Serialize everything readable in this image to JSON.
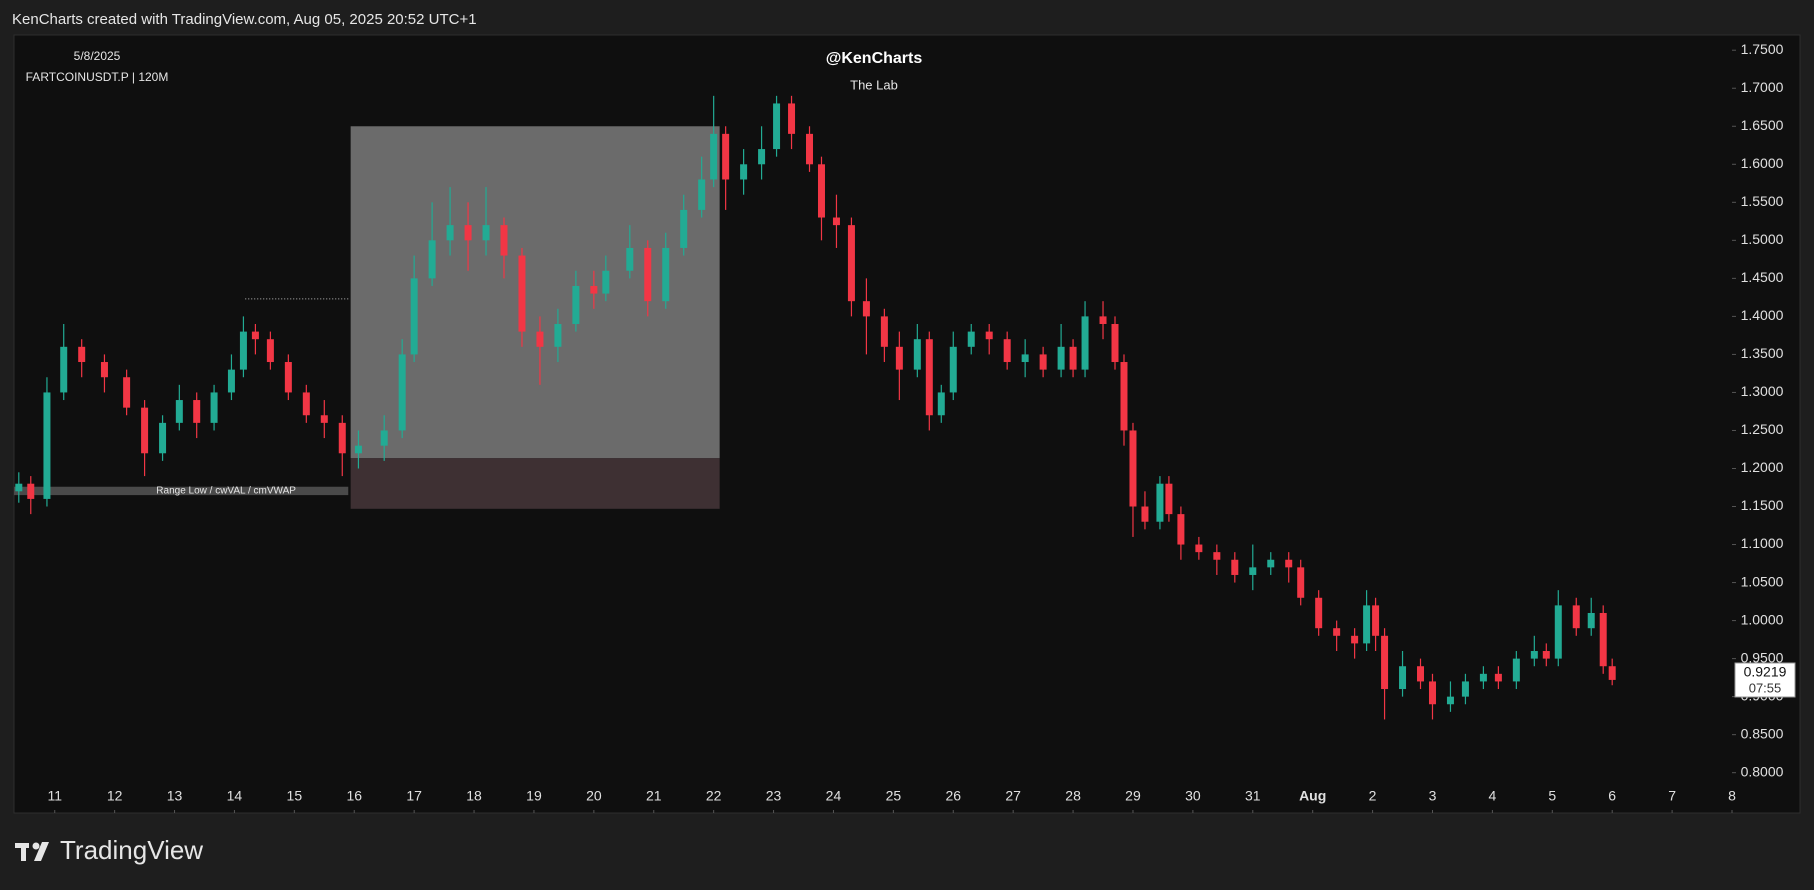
{
  "chart_data": {
    "type": "candlestick",
    "header": "KenCharts created with TradingView.com, Aug 05, 2025 20:52 UTC+1",
    "footer_logo": "TradingView",
    "symbol_date": "5/8/2025",
    "symbol": "FARTCOINUSDT.P | 120M",
    "watermark_title": "@KenCharts",
    "watermark_subtitle": "The Lab",
    "up_color": "#22ab94",
    "down_color": "#f23645",
    "x": [
      10.4,
      10.6,
      10.87,
      11.15,
      11.45,
      11.83,
      12.2,
      12.5,
      12.8,
      13.08,
      13.37,
      13.66,
      13.95,
      14.15,
      14.35,
      14.6,
      14.9,
      15.2,
      15.5,
      15.8,
      16.07,
      16.5,
      16.8,
      17.0,
      17.3,
      17.6,
      17.9,
      18.2,
      18.5,
      18.8,
      19.1,
      19.4,
      19.7,
      20.0,
      20.2,
      20.6,
      20.9,
      21.2,
      21.5,
      21.8,
      22.0,
      22.2,
      22.5,
      22.8,
      23.05,
      23.3,
      23.6,
      23.8,
      24.05,
      24.3,
      24.55,
      24.85,
      25.1,
      25.4,
      25.6,
      25.8,
      26.0,
      26.3,
      26.6,
      26.9,
      27.2,
      27.5,
      27.8,
      28.0,
      28.2,
      28.5,
      28.7,
      28.85,
      29.0,
      29.2,
      29.45,
      29.6,
      29.8,
      30.1,
      30.4,
      30.7,
      31.0,
      31.3,
      31.6,
      31.8,
      32.1,
      32.4,
      32.7,
      32.9,
      33.05,
      33.2,
      33.5,
      33.8,
      34.0,
      34.3,
      34.55,
      34.85,
      35.1,
      35.4,
      35.7,
      35.9,
      36.1,
      36.4,
      36.65,
      36.85,
      37.0
    ],
    "open": [
      1.17,
      1.18,
      1.16,
      1.3,
      1.36,
      1.34,
      1.32,
      1.28,
      1.22,
      1.26,
      1.29,
      1.26,
      1.3,
      1.33,
      1.38,
      1.37,
      1.34,
      1.3,
      1.27,
      1.26,
      1.22,
      1.23,
      1.25,
      1.35,
      1.45,
      1.5,
      1.52,
      1.5,
      1.52,
      1.48,
      1.38,
      1.36,
      1.39,
      1.44,
      1.43,
      1.46,
      1.49,
      1.42,
      1.49,
      1.54,
      1.58,
      1.64,
      1.58,
      1.6,
      1.62,
      1.68,
      1.64,
      1.6,
      1.53,
      1.52,
      1.42,
      1.4,
      1.36,
      1.33,
      1.37,
      1.27,
      1.3,
      1.36,
      1.38,
      1.37,
      1.34,
      1.35,
      1.33,
      1.36,
      1.33,
      1.4,
      1.39,
      1.34,
      1.25,
      1.15,
      1.13,
      1.18,
      1.14,
      1.1,
      1.09,
      1.08,
      1.06,
      1.07,
      1.08,
      1.07,
      1.03,
      0.99,
      0.98,
      0.97,
      1.02,
      0.98,
      0.91,
      0.94,
      0.92,
      0.89,
      0.9,
      0.92,
      0.93,
      0.92,
      0.95,
      0.96,
      0.95,
      1.02,
      0.99,
      1.01,
      0.94
    ],
    "high": [
      1.195,
      1.19,
      1.32,
      1.39,
      1.37,
      1.35,
      1.33,
      1.29,
      1.27,
      1.31,
      1.3,
      1.31,
      1.35,
      1.4,
      1.39,
      1.38,
      1.35,
      1.31,
      1.29,
      1.27,
      1.25,
      1.27,
      1.37,
      1.48,
      1.55,
      1.57,
      1.55,
      1.57,
      1.53,
      1.49,
      1.4,
      1.41,
      1.46,
      1.46,
      1.48,
      1.52,
      1.5,
      1.51,
      1.56,
      1.61,
      1.69,
      1.65,
      1.62,
      1.65,
      1.69,
      1.69,
      1.65,
      1.61,
      1.56,
      1.53,
      1.45,
      1.41,
      1.38,
      1.39,
      1.38,
      1.31,
      1.38,
      1.39,
      1.39,
      1.38,
      1.37,
      1.36,
      1.39,
      1.37,
      1.42,
      1.42,
      1.4,
      1.35,
      1.26,
      1.17,
      1.19,
      1.19,
      1.15,
      1.11,
      1.1,
      1.09,
      1.1,
      1.09,
      1.09,
      1.08,
      1.04,
      1.0,
      0.99,
      1.04,
      1.03,
      0.99,
      0.96,
      0.95,
      0.93,
      0.92,
      0.93,
      0.94,
      0.94,
      0.96,
      0.98,
      0.97,
      1.04,
      1.03,
      1.03,
      1.02,
      0.95
    ],
    "low": [
      1.155,
      1.14,
      1.15,
      1.29,
      1.32,
      1.3,
      1.27,
      1.19,
      1.21,
      1.25,
      1.24,
      1.25,
      1.29,
      1.32,
      1.35,
      1.33,
      1.29,
      1.26,
      1.24,
      1.19,
      1.2,
      1.21,
      1.24,
      1.34,
      1.44,
      1.48,
      1.46,
      1.48,
      1.45,
      1.36,
      1.31,
      1.34,
      1.38,
      1.41,
      1.42,
      1.45,
      1.4,
      1.41,
      1.48,
      1.53,
      1.57,
      1.54,
      1.56,
      1.58,
      1.61,
      1.62,
      1.59,
      1.5,
      1.49,
      1.4,
      1.35,
      1.34,
      1.29,
      1.32,
      1.25,
      1.26,
      1.29,
      1.35,
      1.35,
      1.33,
      1.32,
      1.32,
      1.32,
      1.32,
      1.32,
      1.37,
      1.33,
      1.23,
      1.11,
      1.12,
      1.12,
      1.13,
      1.08,
      1.08,
      1.06,
      1.05,
      1.04,
      1.06,
      1.05,
      1.02,
      0.98,
      0.96,
      0.95,
      0.96,
      0.96,
      0.87,
      0.9,
      0.91,
      0.87,
      0.88,
      0.89,
      0.91,
      0.91,
      0.91,
      0.94,
      0.94,
      0.94,
      0.98,
      0.98,
      0.93,
      0.915
    ],
    "close": [
      1.18,
      1.16,
      1.3,
      1.36,
      1.34,
      1.32,
      1.28,
      1.22,
      1.26,
      1.29,
      1.26,
      1.3,
      1.33,
      1.38,
      1.37,
      1.34,
      1.3,
      1.27,
      1.26,
      1.22,
      1.23,
      1.25,
      1.35,
      1.45,
      1.5,
      1.52,
      1.5,
      1.52,
      1.48,
      1.38,
      1.36,
      1.39,
      1.44,
      1.43,
      1.46,
      1.49,
      1.42,
      1.49,
      1.54,
      1.58,
      1.64,
      1.58,
      1.6,
      1.62,
      1.68,
      1.64,
      1.6,
      1.53,
      1.52,
      1.42,
      1.4,
      1.36,
      1.33,
      1.37,
      1.27,
      1.3,
      1.36,
      1.38,
      1.37,
      1.34,
      1.35,
      1.33,
      1.36,
      1.33,
      1.4,
      1.39,
      1.34,
      1.25,
      1.15,
      1.13,
      1.18,
      1.14,
      1.1,
      1.09,
      1.08,
      1.06,
      1.07,
      1.08,
      1.07,
      1.03,
      0.99,
      0.98,
      0.97,
      1.02,
      0.98,
      0.91,
      0.94,
      0.92,
      0.89,
      0.9,
      0.92,
      0.93,
      0.92,
      0.95,
      0.96,
      0.95,
      1.02,
      0.99,
      1.01,
      0.94,
      0.922
    ],
    "xlim": [
      10.32,
      39
    ],
    "xticks": [
      11,
      12,
      13,
      14,
      15,
      16,
      17,
      18,
      19,
      20,
      21,
      22,
      23,
      24,
      25,
      26,
      27,
      28,
      29,
      30,
      31,
      {
        "value": 32,
        "label": "Aug"
      },
      {
        "value": 33,
        "label": "2"
      },
      {
        "value": 34,
        "label": "3"
      },
      {
        "value": 35,
        "label": "4"
      },
      {
        "value": 36,
        "label": "5"
      },
      {
        "value": 37,
        "label": "6"
      },
      {
        "value": 38,
        "label": "7"
      },
      {
        "value": 39,
        "label": "8"
      }
    ],
    "ylim": [
      0.747,
      1.77
    ],
    "yticks": [
      {
        "value": 0.8,
        "label": "0.8000"
      },
      {
        "value": 0.85,
        "label": "0.8500"
      },
      {
        "value": 0.9,
        "label": "0.9000"
      },
      {
        "value": 0.95,
        "label": "0.9500"
      },
      {
        "value": 1.0,
        "label": "1.0000"
      },
      {
        "value": 1.05,
        "label": "1.0500"
      },
      {
        "value": 1.1,
        "label": "1.1000"
      },
      {
        "value": 1.15,
        "label": "1.1500"
      },
      {
        "value": 1.2,
        "label": "1.2000"
      },
      {
        "value": 1.25,
        "label": "1.2500"
      },
      {
        "value": 1.3,
        "label": "1.3000"
      },
      {
        "value": 1.35,
        "label": "1.3500"
      },
      {
        "value": 1.4,
        "label": "1.4000"
      },
      {
        "value": 1.45,
        "label": "1.4500"
      },
      {
        "value": 1.5,
        "label": "1.5000"
      },
      {
        "value": 1.55,
        "label": "1.5500"
      },
      {
        "value": 1.6,
        "label": "1.6000"
      },
      {
        "value": 1.65,
        "label": "1.6500"
      },
      {
        "value": 1.7,
        "label": "1.7000"
      },
      {
        "value": 1.75,
        "label": "1.7500"
      }
    ],
    "zones": [
      {
        "x": [
          15.94,
          22.1
        ],
        "y": [
          1.2135,
          1.65
        ],
        "color": "#6b6b6b"
      },
      {
        "x": [
          15.94,
          22.1
        ],
        "y": [
          1.147,
          1.2135
        ],
        "color": "#3e3033"
      }
    ],
    "range_band": {
      "x": [
        10.32,
        15.9
      ],
      "y": [
        1.165,
        1.176
      ],
      "label": "Range Low / cwVAL / cmVWAP",
      "color": "#4a4a4a"
    },
    "level_line": {
      "x": [
        14.18,
        15.9
      ],
      "y": 1.423,
      "color": "#bdbdbd"
    },
    "last_price": 0.9219,
    "countdown": "07:55"
  }
}
